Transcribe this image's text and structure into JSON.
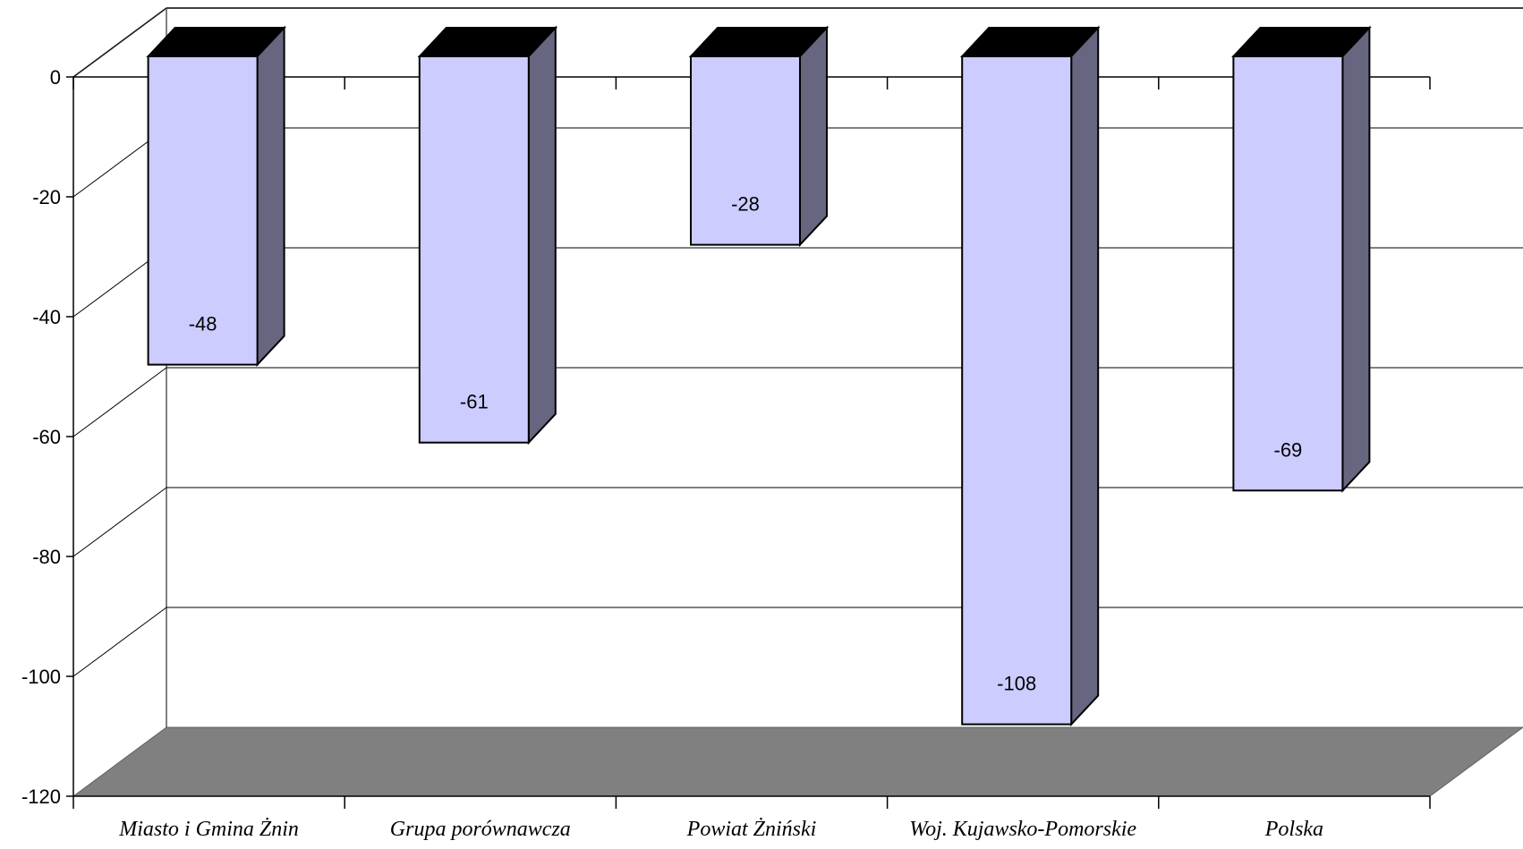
{
  "chart_data": {
    "type": "bar",
    "style": "3d-column",
    "categories": [
      "Miasto i Gmina Żnin",
      "Grupa porównawcza",
      "Powiat Żniński",
      "Woj. Kujawsko-Pomorskie",
      "Polska"
    ],
    "values": [
      -48,
      -61,
      -28,
      -108,
      -69
    ],
    "data_labels": [
      "-48",
      "-61",
      "-28",
      "-108",
      "-69"
    ],
    "title": "",
    "xlabel": "",
    "ylabel": "",
    "ylim": [
      -120,
      0
    ],
    "yticks": [
      0,
      -20,
      -40,
      -60,
      -80,
      -100,
      -120
    ],
    "ytick_labels": [
      "0",
      "-20",
      "-40",
      "-60",
      "-80",
      "-100",
      "-120"
    ],
    "grid": true,
    "legend": "none",
    "colors": {
      "bar_front": "#ccccff",
      "bar_side": "#666680",
      "bar_top": "#000000",
      "floor": "#808080",
      "gridline": "#000000",
      "wall_edge": "#808080"
    }
  }
}
